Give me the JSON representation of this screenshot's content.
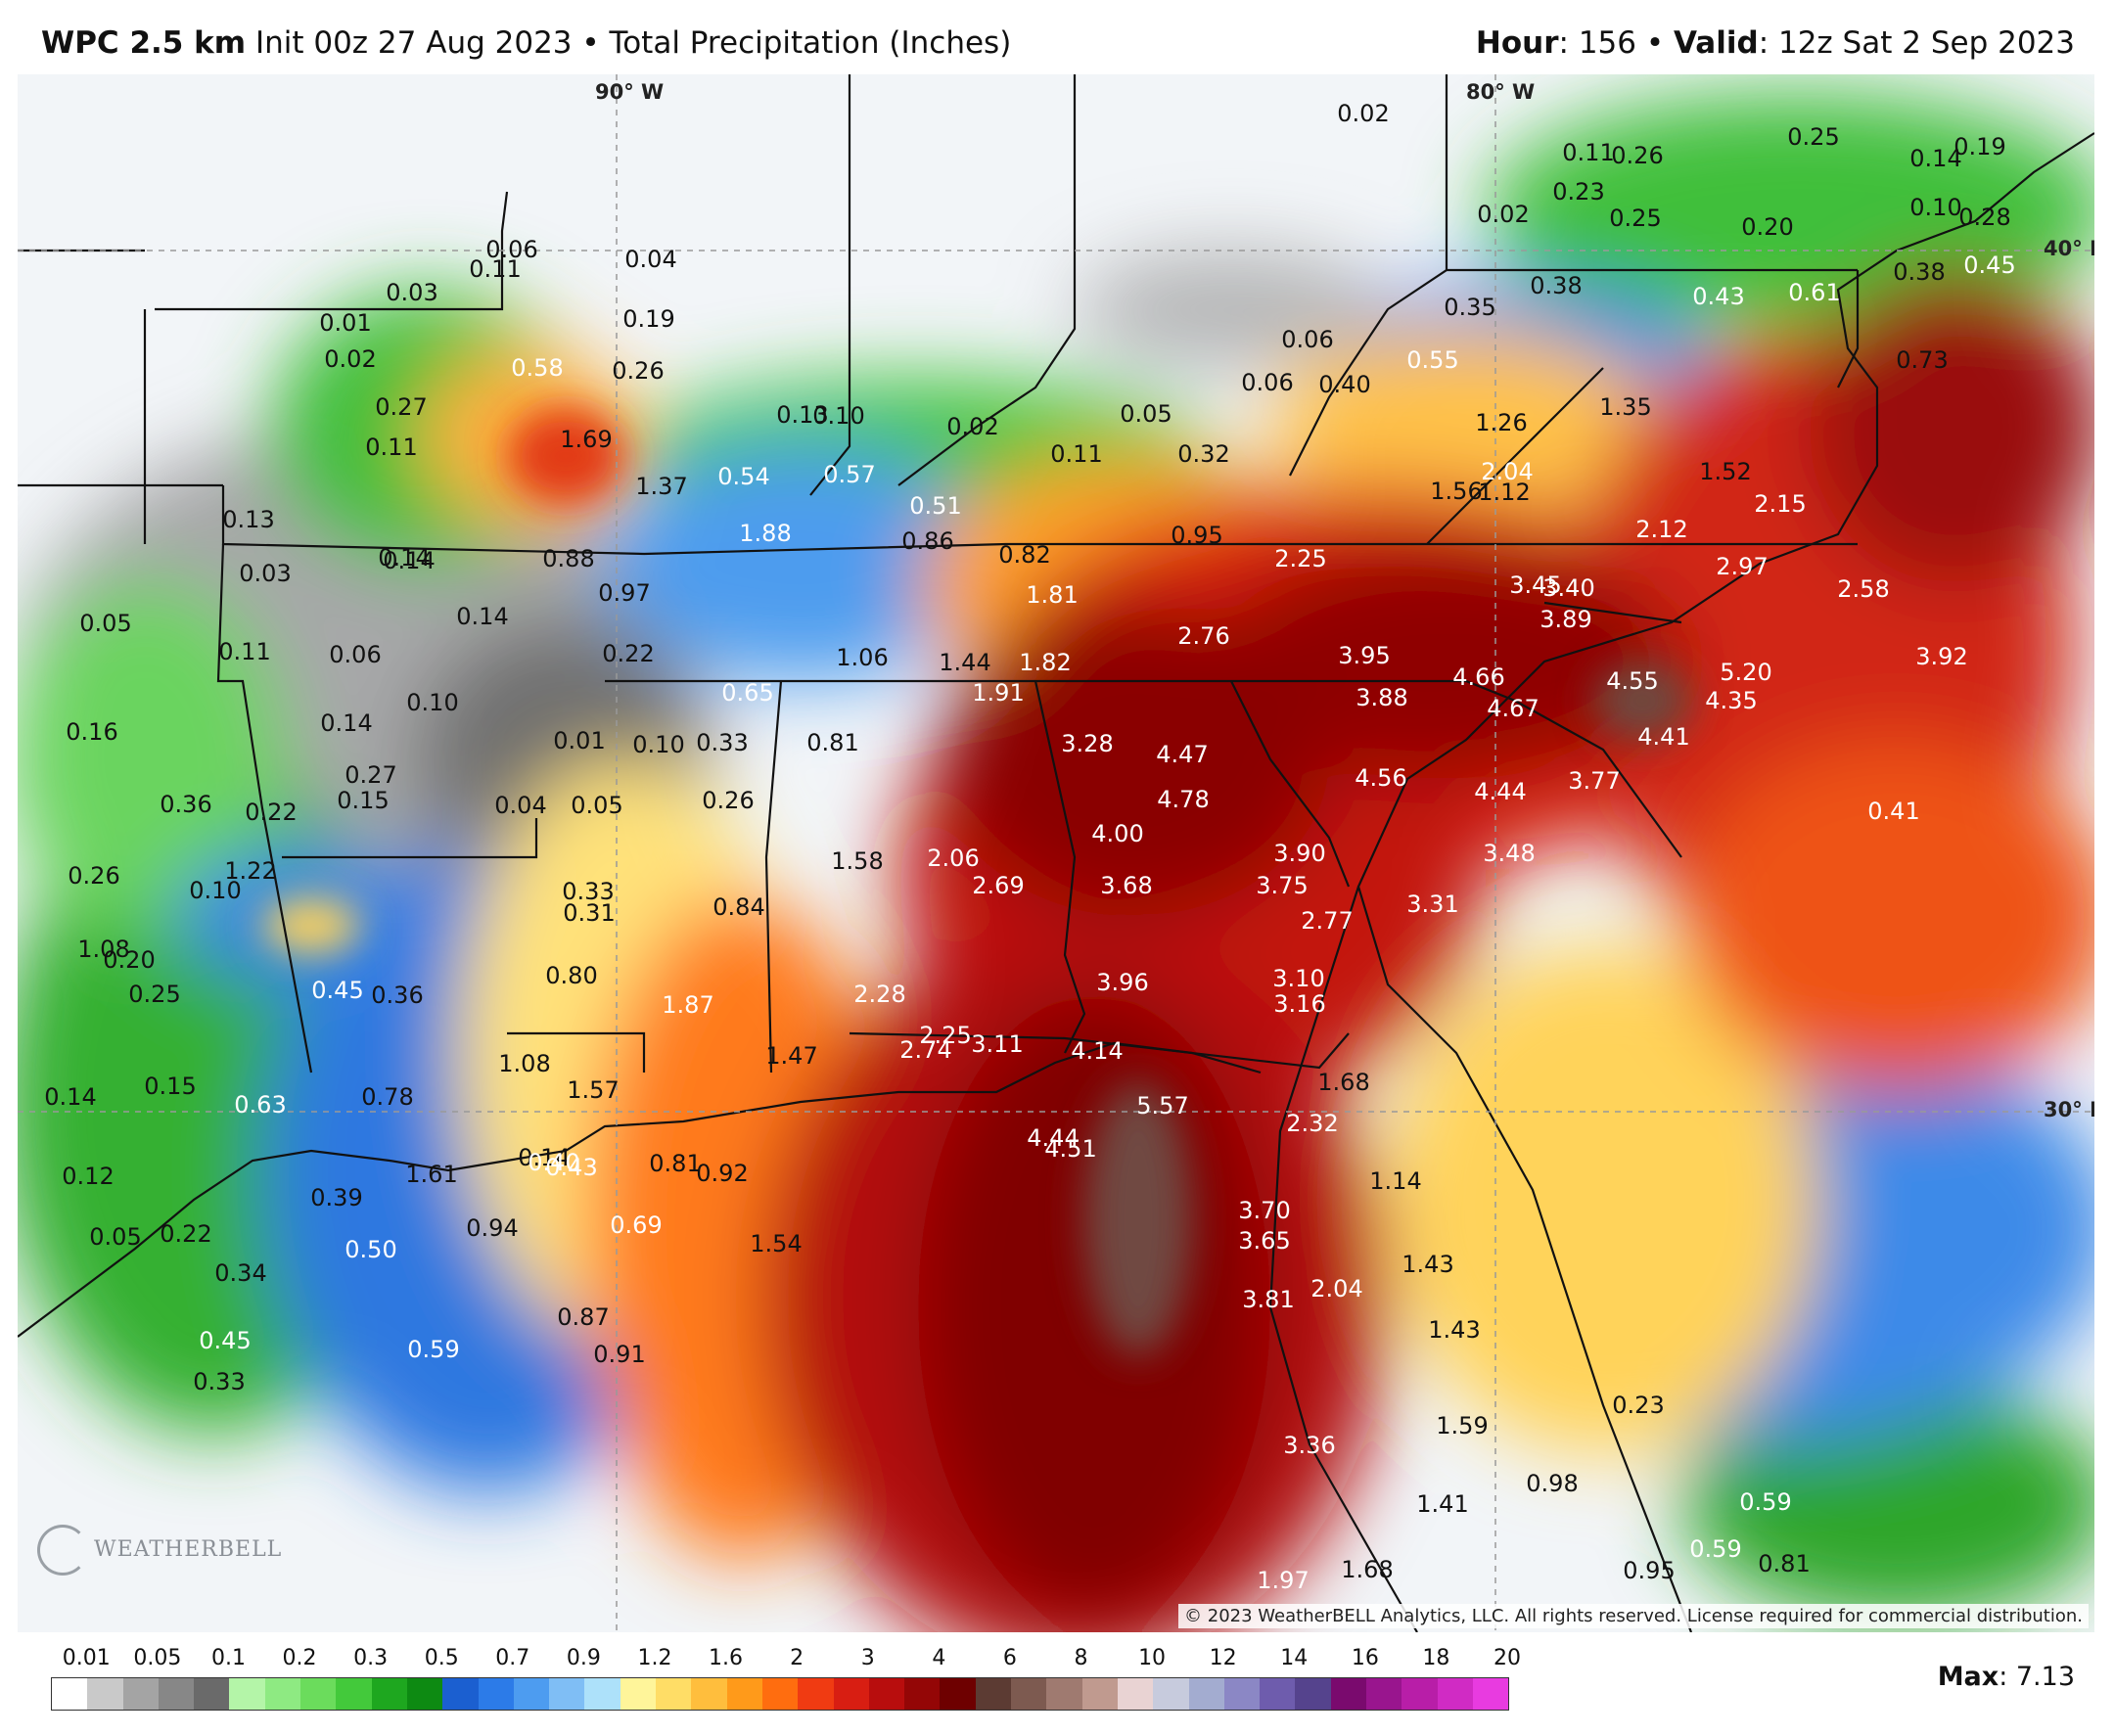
{
  "header": {
    "model": "WPC 2.5 km",
    "init": "Init 00z 27 Aug 2023",
    "separator": "•",
    "product": "Total Precipitation (Inches)",
    "hour_label": "Hour",
    "hour_value": ": 156",
    "valid_label": "Valid",
    "valid_value": ": 12z Sat 2 Sep 2023"
  },
  "map": {
    "coords": {
      "lon90": "90° W",
      "lon80": "80° W",
      "lat40": "40° N",
      "lat30": "30° N"
    },
    "copyright": "© 2023 WeatherBELL Analytics, LLC. All rights reserved. License required for commercial distribution.",
    "logo": "WEATHERBELL",
    "values": [
      {
        "t": "0.02",
        "c": "d"
      },
      {
        "t": "0.11",
        "c": "d"
      },
      {
        "t": "0.26",
        "c": "d"
      },
      {
        "t": "0.25",
        "c": "d"
      },
      {
        "t": "0.14",
        "c": "d"
      },
      {
        "t": "0.19",
        "c": "d"
      },
      {
        "t": "0.23",
        "c": "d"
      },
      {
        "t": "0.02",
        "c": "d"
      },
      {
        "t": "0.25",
        "c": "d"
      },
      {
        "t": "0.20",
        "c": "d"
      },
      {
        "t": "0.10",
        "c": "d"
      },
      {
        "t": "0.28",
        "c": "d"
      },
      {
        "t": "0.06",
        "c": "d"
      },
      {
        "t": "0.04",
        "c": "d"
      },
      {
        "t": "0.11",
        "c": "d"
      },
      {
        "t": "0.03",
        "c": "d"
      },
      {
        "t": "0.01",
        "c": "d"
      },
      {
        "t": "0.02",
        "c": "d"
      },
      {
        "t": "0.19",
        "c": "d"
      },
      {
        "t": "0.26",
        "c": "d"
      },
      {
        "t": "0.58",
        "c": "w"
      },
      {
        "t": "0.27",
        "c": "d"
      },
      {
        "t": "0.11",
        "c": "d"
      },
      {
        "t": "1.69",
        "c": "d"
      },
      {
        "t": "1.37",
        "c": "d"
      },
      {
        "t": "0.13",
        "c": "d"
      },
      {
        "t": "0.10",
        "c": "d"
      },
      {
        "t": "0.54",
        "c": "w"
      },
      {
        "t": "0.02",
        "c": "d"
      },
      {
        "t": "0.05",
        "c": "d"
      },
      {
        "t": "0.11",
        "c": "d"
      },
      {
        "t": "0.32",
        "c": "d"
      },
      {
        "t": "0.06",
        "c": "d"
      },
      {
        "t": "0.06",
        "c": "d"
      },
      {
        "t": "0.40",
        "c": "d"
      },
      {
        "t": "0.55",
        "c": "w"
      },
      {
        "t": "0.35",
        "c": "d"
      },
      {
        "t": "0.38",
        "c": "d"
      },
      {
        "t": "0.43",
        "c": "w"
      },
      {
        "t": "0.61",
        "c": "w"
      },
      {
        "t": "0.38",
        "c": "d"
      },
      {
        "t": "0.45",
        "c": "w"
      },
      {
        "t": "0.73",
        "c": "d"
      },
      {
        "t": "1.26",
        "c": "d"
      },
      {
        "t": "1.35",
        "c": "d"
      },
      {
        "t": "0.57",
        "c": "w"
      },
      {
        "t": "0.51",
        "c": "w"
      },
      {
        "t": "0.13",
        "c": "d"
      },
      {
        "t": "0.14",
        "c": "d"
      },
      {
        "t": "0.03",
        "c": "d"
      },
      {
        "t": "0.88",
        "c": "d"
      },
      {
        "t": "1.88",
        "c": "w"
      },
      {
        "t": "0.86",
        "c": "d"
      },
      {
        "t": "0.82",
        "c": "d"
      },
      {
        "t": "0.95",
        "c": "d"
      },
      {
        "t": "1.12",
        "c": "d"
      },
      {
        "t": "1.56",
        "c": "d"
      },
      {
        "t": "2.04",
        "c": "w"
      },
      {
        "t": "1.52",
        "c": "d"
      },
      {
        "t": "2.15",
        "c": "w"
      },
      {
        "t": "2.25",
        "c": "w"
      },
      {
        "t": "2.12",
        "c": "w"
      },
      {
        "t": "2.97",
        "c": "w"
      },
      {
        "t": "2.58",
        "c": "w"
      },
      {
        "t": "0.05",
        "c": "d"
      },
      {
        "t": "0.14",
        "c": "d"
      },
      {
        "t": "0.14",
        "c": "d"
      },
      {
        "t": "0.97",
        "c": "d"
      },
      {
        "t": "1.81",
        "c": "w"
      },
      {
        "t": "2.76",
        "c": "w"
      },
      {
        "t": "3.45",
        "c": "w"
      },
      {
        "t": "3.40",
        "c": "w"
      },
      {
        "t": "3.89",
        "c": "w"
      },
      {
        "t": "0.11",
        "c": "d"
      },
      {
        "t": "0.06",
        "c": "d"
      },
      {
        "t": "0.22",
        "c": "d"
      },
      {
        "t": "1.06",
        "c": "d"
      },
      {
        "t": "1.44",
        "c": "d"
      },
      {
        "t": "1.82",
        "c": "w"
      },
      {
        "t": "3.95",
        "c": "w"
      },
      {
        "t": "4.66",
        "c": "w"
      },
      {
        "t": "4.55",
        "c": "w"
      },
      {
        "t": "5.20",
        "c": "w"
      },
      {
        "t": "3.92",
        "c": "w"
      },
      {
        "t": "0.10",
        "c": "d"
      },
      {
        "t": "0.65",
        "c": "w"
      },
      {
        "t": "1.91",
        "c": "w"
      },
      {
        "t": "3.88",
        "c": "w"
      },
      {
        "t": "4.67",
        "c": "w"
      },
      {
        "t": "4.35",
        "c": "w"
      },
      {
        "t": "0.16",
        "c": "d"
      },
      {
        "t": "0.14",
        "c": "d"
      },
      {
        "t": "0.01",
        "c": "d"
      },
      {
        "t": "0.10",
        "c": "d"
      },
      {
        "t": "0.33",
        "c": "d"
      },
      {
        "t": "0.81",
        "c": "d"
      },
      {
        "t": "3.28",
        "c": "w"
      },
      {
        "t": "4.47",
        "c": "w"
      },
      {
        "t": "4.41",
        "c": "w"
      },
      {
        "t": "0.27",
        "c": "d"
      },
      {
        "t": "0.36",
        "c": "d"
      },
      {
        "t": "0.22",
        "c": "d"
      },
      {
        "t": "0.15",
        "c": "d"
      },
      {
        "t": "0.04",
        "c": "d"
      },
      {
        "t": "0.05",
        "c": "d"
      },
      {
        "t": "0.26",
        "c": "d"
      },
      {
        "t": "4.78",
        "c": "w"
      },
      {
        "t": "4.56",
        "c": "w"
      },
      {
        "t": "4.44",
        "c": "w"
      },
      {
        "t": "3.77",
        "c": "w"
      },
      {
        "t": "0.41",
        "c": "w"
      },
      {
        "t": "0.26",
        "c": "d"
      },
      {
        "t": "1.08",
        "c": "d"
      },
      {
        "t": "1.22",
        "c": "d"
      },
      {
        "t": "0.10",
        "c": "d"
      },
      {
        "t": "1.58",
        "c": "d"
      },
      {
        "t": "2.06",
        "c": "w"
      },
      {
        "t": "4.00",
        "c": "w"
      },
      {
        "t": "3.90",
        "c": "w"
      },
      {
        "t": "3.48",
        "c": "w"
      },
      {
        "t": "2.69",
        "c": "w"
      },
      {
        "t": "3.68",
        "c": "w"
      },
      {
        "t": "3.75",
        "c": "w"
      },
      {
        "t": "0.33",
        "c": "d"
      },
      {
        "t": "0.31",
        "c": "d"
      },
      {
        "t": "0.84",
        "c": "d"
      },
      {
        "t": "2.77",
        "c": "w"
      },
      {
        "t": "3.31",
        "c": "w"
      },
      {
        "t": "0.20",
        "c": "d"
      },
      {
        "t": "0.25",
        "c": "d"
      },
      {
        "t": "0.45",
        "c": "w"
      },
      {
        "t": "0.36",
        "c": "d"
      },
      {
        "t": "0.80",
        "c": "d"
      },
      {
        "t": "1.87",
        "c": "w"
      },
      {
        "t": "2.28",
        "c": "w"
      },
      {
        "t": "3.96",
        "c": "w"
      },
      {
        "t": "3.10",
        "c": "w"
      },
      {
        "t": "3.16",
        "c": "w"
      },
      {
        "t": "2.25",
        "c": "w"
      },
      {
        "t": "2.74",
        "c": "w"
      },
      {
        "t": "3.11",
        "c": "w"
      },
      {
        "t": "4.14",
        "c": "w"
      },
      {
        "t": "1.08",
        "c": "d"
      },
      {
        "t": "1.47",
        "c": "d"
      },
      {
        "t": "0.14",
        "c": "d"
      },
      {
        "t": "0.15",
        "c": "d"
      },
      {
        "t": "0.63",
        "c": "w"
      },
      {
        "t": "0.78",
        "c": "d"
      },
      {
        "t": "1.57",
        "c": "d"
      },
      {
        "t": "1.68",
        "c": "d"
      },
      {
        "t": "5.57",
        "c": "w"
      },
      {
        "t": "2.32",
        "c": "w"
      },
      {
        "t": "4.44",
        "c": "w"
      },
      {
        "t": "4.51",
        "c": "w"
      },
      {
        "t": "0.14",
        "c": "d"
      },
      {
        "t": "0.40",
        "c": "w"
      },
      {
        "t": "0.43",
        "c": "w"
      },
      {
        "t": "1.61",
        "c": "d"
      },
      {
        "t": "0.81",
        "c": "d"
      },
      {
        "t": "0.92",
        "c": "d"
      },
      {
        "t": "0.12",
        "c": "d"
      },
      {
        "t": "0.39",
        "c": "d"
      },
      {
        "t": "1.14",
        "c": "d"
      },
      {
        "t": "0.05",
        "c": "d"
      },
      {
        "t": "0.22",
        "c": "d"
      },
      {
        "t": "0.94",
        "c": "d"
      },
      {
        "t": "0.69",
        "c": "w"
      },
      {
        "t": "1.54",
        "c": "d"
      },
      {
        "t": "0.50",
        "c": "w"
      },
      {
        "t": "3.70",
        "c": "w"
      },
      {
        "t": "3.65",
        "c": "w"
      },
      {
        "t": "1.43",
        "c": "d"
      },
      {
        "t": "0.34",
        "c": "d"
      },
      {
        "t": "2.04",
        "c": "w"
      },
      {
        "t": "3.81",
        "c": "w"
      },
      {
        "t": "0.87",
        "c": "d"
      },
      {
        "t": "0.45",
        "c": "w"
      },
      {
        "t": "0.59",
        "c": "w"
      },
      {
        "t": "0.91",
        "c": "d"
      },
      {
        "t": "1.43",
        "c": "d"
      },
      {
        "t": "0.33",
        "c": "d"
      },
      {
        "t": "0.23",
        "c": "d"
      },
      {
        "t": "1.59",
        "c": "d"
      },
      {
        "t": "3.36",
        "c": "w"
      },
      {
        "t": "0.98",
        "c": "d"
      },
      {
        "t": "1.41",
        "c": "d"
      },
      {
        "t": "0.59",
        "c": "w"
      },
      {
        "t": "0.59",
        "c": "w"
      },
      {
        "t": "0.81",
        "c": "d"
      },
      {
        "t": "0.95",
        "c": "d"
      },
      {
        "t": "1.97",
        "c": "w"
      },
      {
        "t": "1.68",
        "c": "d"
      }
    ]
  },
  "legend": {
    "labels": [
      "0.01",
      "0.05",
      "0.1",
      "0.2",
      "0.3",
      "0.5",
      "0.7",
      "0.9",
      "1.2",
      "1.6",
      "2",
      "3",
      "4",
      "6",
      "8",
      "10",
      "12",
      "14",
      "16",
      "18",
      "20"
    ],
    "colors": [
      "#ffffff",
      "#c9c9c9",
      "#a4a4a4",
      "#878787",
      "#6a6a6a",
      "#b4f5a8",
      "#8eea82",
      "#6bdc5c",
      "#43c93b",
      "#1ea71f",
      "#0d8a12",
      "#1b5fd0",
      "#2c7be8",
      "#4d9cf0",
      "#7fbef5",
      "#ade1fa",
      "#fff59a",
      "#ffdd66",
      "#ffbe3d",
      "#ff9a1a",
      "#ff6d0f",
      "#f03b12",
      "#d81e12",
      "#b80d0d",
      "#940606",
      "#6e0000",
      "#5c3b33",
      "#7d5a50",
      "#9f7a70",
      "#c09a8f",
      "#e9d3d3",
      "#c7cbdd",
      "#a3acd0",
      "#8b87c5",
      "#6e5cad",
      "#55438d",
      "#7a0a6e",
      "#99158e",
      "#b81ea8",
      "#d02bc4",
      "#e83be0"
    ],
    "max_label": "Max",
    "max_value": ": 7.13"
  }
}
